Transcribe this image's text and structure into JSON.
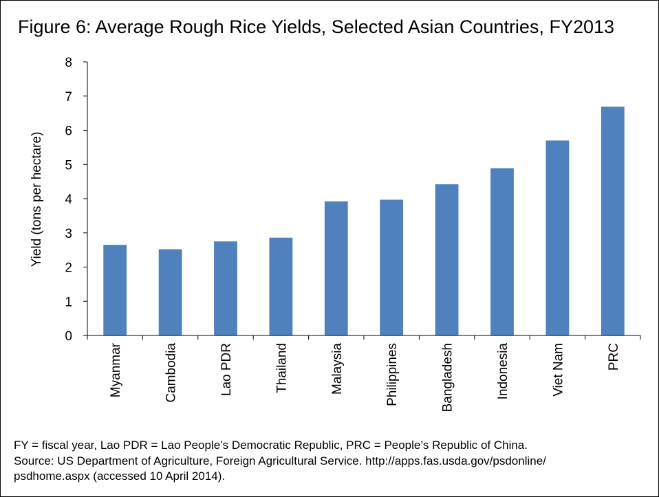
{
  "chart_data": {
    "type": "bar",
    "title": "Figure 6: Average Rough Rice Yields, Selected Asian Countries, FY2013",
    "ylabel": "Yield (tons per hectare)",
    "xlabel": "",
    "categories": [
      "Myanmar",
      "Cambodia",
      "Lao PDR",
      "Thailand",
      "Malaysia",
      "Philippines",
      "Bangladesh",
      "Indonesia",
      "Viet Nam",
      "PRC"
    ],
    "values": [
      2.65,
      2.52,
      2.75,
      2.86,
      3.92,
      3.97,
      4.42,
      4.89,
      5.7,
      6.69
    ],
    "ylim": [
      0,
      8
    ],
    "yticks": [
      "0",
      "1",
      "2",
      "3",
      "4",
      "5",
      "6",
      "7",
      "8"
    ],
    "grid": false,
    "legend": "none",
    "bar_color": "#4F81BD"
  },
  "notes": {
    "line1": "FY = fiscal year, Lao PDR = Lao People’s Democratic Republic, PRC = People’s Republic of China.",
    "line2": "Source: US Department of Agriculture, Foreign Agricultural Service.  http://apps.fas.usda.gov/psdonline/",
    "line3": "psdhome.aspx (accessed 10 April 2014)."
  }
}
